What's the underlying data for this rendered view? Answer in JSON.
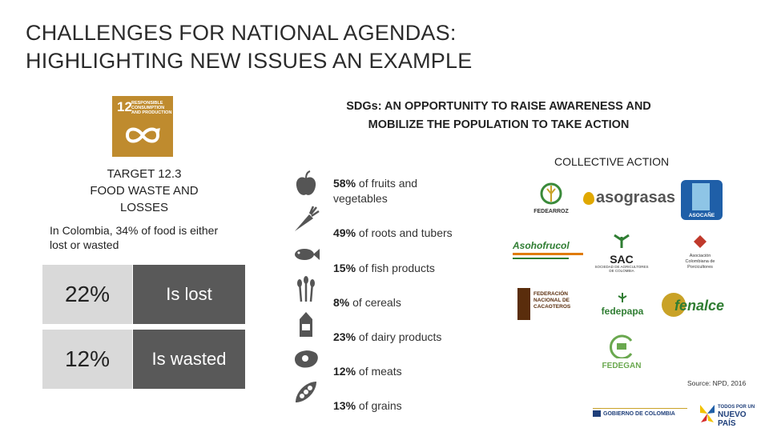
{
  "title": "CHALLENGES FOR NATIONAL AGENDAS:\nHIGHLIGHTING NEW ISSUES AN EXAMPLE",
  "sdg_tile": {
    "number": "12",
    "text": "RESPONSIBLE\nCONSUMPTION\nAND PRODUCTION",
    "color": "#bf8b2e"
  },
  "target": {
    "heading": "TARGET 12.3",
    "line2": "FOOD WASTE AND",
    "line3": "LOSSES"
  },
  "colombia_text": "In Colombia, 34% of food is either lost or wasted",
  "stats": [
    {
      "pct": "22%",
      "label": "Is lost"
    },
    {
      "pct": "12%",
      "label": "Is wasted"
    }
  ],
  "sdgs_heading": "SDGs: AN OPPORTUNITY TO RAISE AWARENESS AND\nMOBILIZE THE POPULATION TO TAKE ACTION",
  "collective_action": "COLLECTIVE ACTION",
  "food_stats": [
    {
      "pct": "58%",
      "text": " of fruits and vegetables",
      "icon": "apple-icon"
    },
    {
      "pct": "49%",
      "text": " of roots and tubers",
      "icon": "carrot-icon"
    },
    {
      "pct": "15%",
      "text": " of fish products",
      "icon": "fish-icon"
    },
    {
      "pct": "8%",
      "text": " of cereals",
      "icon": "wheat-icon"
    },
    {
      "pct": "23%",
      "text": " of dairy products",
      "icon": "milk-carton-icon"
    },
    {
      "pct": "12%",
      "text": " of meats",
      "icon": "steak-icon"
    },
    {
      "pct": "13%",
      "text": " of grains",
      "icon": "bean-pod-icon"
    }
  ],
  "logos": {
    "fedearroz": "FEDEARROZ",
    "asograsas": "asograsas",
    "asocaribe": "ASOCAÑE",
    "asohofrucol": "Asohofrucol",
    "sac": "SAC",
    "sac_sub": "SOCIEDAD DE AGRICULTORES DE COLOMBIA",
    "porcicultores": "Asociación Colombiana de Porcicultores",
    "cacaoteros": "FEDERACIÓN NACIONAL DE CACAOTEROS",
    "fedepapa": "fedepapa",
    "fenalce": "fenalce",
    "fedegan": "FEDEGAN",
    "gobierno": "GOBIERNO DE COLOMBIA",
    "todos_line1": "TODOS POR UN",
    "todos_line2": "NUEVO PAÍS"
  },
  "source": "Source: NPD, 2016"
}
